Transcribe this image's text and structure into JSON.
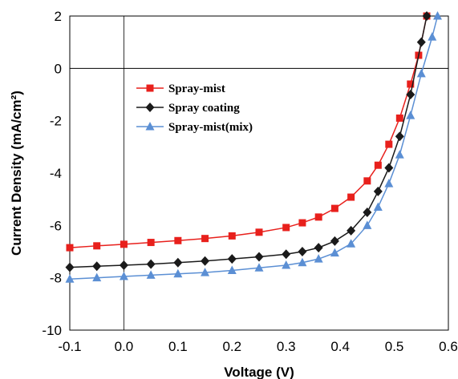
{
  "chart_data": {
    "type": "line",
    "xlabel": "Voltage (V)",
    "ylabel": "Current Density (mA/cm²)",
    "xlim": [
      -0.1,
      0.6
    ],
    "ylim": [
      -10,
      2
    ],
    "x_ticks": [
      "-0.1",
      "0.0",
      "0.1",
      "0.2",
      "0.3",
      "0.4",
      "0.5",
      "0.6"
    ],
    "y_ticks": [
      "2",
      "0",
      "-2",
      "-4",
      "-6",
      "-8",
      "-10"
    ],
    "grid": false,
    "legend_position": "top-left",
    "series": [
      {
        "name": "Spray-mist",
        "color": "#e8201c",
        "marker": "square",
        "points": [
          [
            -0.1,
            -6.85
          ],
          [
            -0.05,
            -6.78
          ],
          [
            0.0,
            -6.72
          ],
          [
            0.05,
            -6.65
          ],
          [
            0.1,
            -6.58
          ],
          [
            0.15,
            -6.5
          ],
          [
            0.2,
            -6.4
          ],
          [
            0.25,
            -6.26
          ],
          [
            0.3,
            -6.08
          ],
          [
            0.33,
            -5.9
          ],
          [
            0.36,
            -5.68
          ],
          [
            0.39,
            -5.35
          ],
          [
            0.42,
            -4.92
          ],
          [
            0.45,
            -4.3
          ],
          [
            0.47,
            -3.7
          ],
          [
            0.49,
            -2.9
          ],
          [
            0.51,
            -1.9
          ],
          [
            0.53,
            -0.6
          ],
          [
            0.545,
            0.5
          ],
          [
            0.56,
            2.0
          ]
        ]
      },
      {
        "name": "Spray coating",
        "color": "#1a1a1a",
        "marker": "diamond",
        "points": [
          [
            -0.1,
            -7.6
          ],
          [
            -0.05,
            -7.56
          ],
          [
            0.0,
            -7.52
          ],
          [
            0.05,
            -7.48
          ],
          [
            0.1,
            -7.42
          ],
          [
            0.15,
            -7.36
          ],
          [
            0.2,
            -7.28
          ],
          [
            0.25,
            -7.2
          ],
          [
            0.3,
            -7.1
          ],
          [
            0.33,
            -7.0
          ],
          [
            0.36,
            -6.85
          ],
          [
            0.39,
            -6.6
          ],
          [
            0.42,
            -6.2
          ],
          [
            0.45,
            -5.5
          ],
          [
            0.47,
            -4.7
          ],
          [
            0.49,
            -3.8
          ],
          [
            0.51,
            -2.6
          ],
          [
            0.53,
            -1.0
          ],
          [
            0.55,
            1.0
          ],
          [
            0.56,
            2.0
          ]
        ]
      },
      {
        "name": "Spray-mist(mix)",
        "color": "#5b8fd4",
        "marker": "triangle",
        "points": [
          [
            -0.1,
            -8.05
          ],
          [
            -0.05,
            -8.0
          ],
          [
            0.0,
            -7.95
          ],
          [
            0.05,
            -7.9
          ],
          [
            0.1,
            -7.85
          ],
          [
            0.15,
            -7.8
          ],
          [
            0.2,
            -7.72
          ],
          [
            0.25,
            -7.62
          ],
          [
            0.3,
            -7.52
          ],
          [
            0.33,
            -7.42
          ],
          [
            0.36,
            -7.28
          ],
          [
            0.39,
            -7.05
          ],
          [
            0.42,
            -6.7
          ],
          [
            0.45,
            -6.0
          ],
          [
            0.47,
            -5.3
          ],
          [
            0.49,
            -4.4
          ],
          [
            0.51,
            -3.3
          ],
          [
            0.53,
            -1.8
          ],
          [
            0.55,
            -0.2
          ],
          [
            0.57,
            1.2
          ],
          [
            0.58,
            2.0
          ]
        ]
      }
    ]
  }
}
